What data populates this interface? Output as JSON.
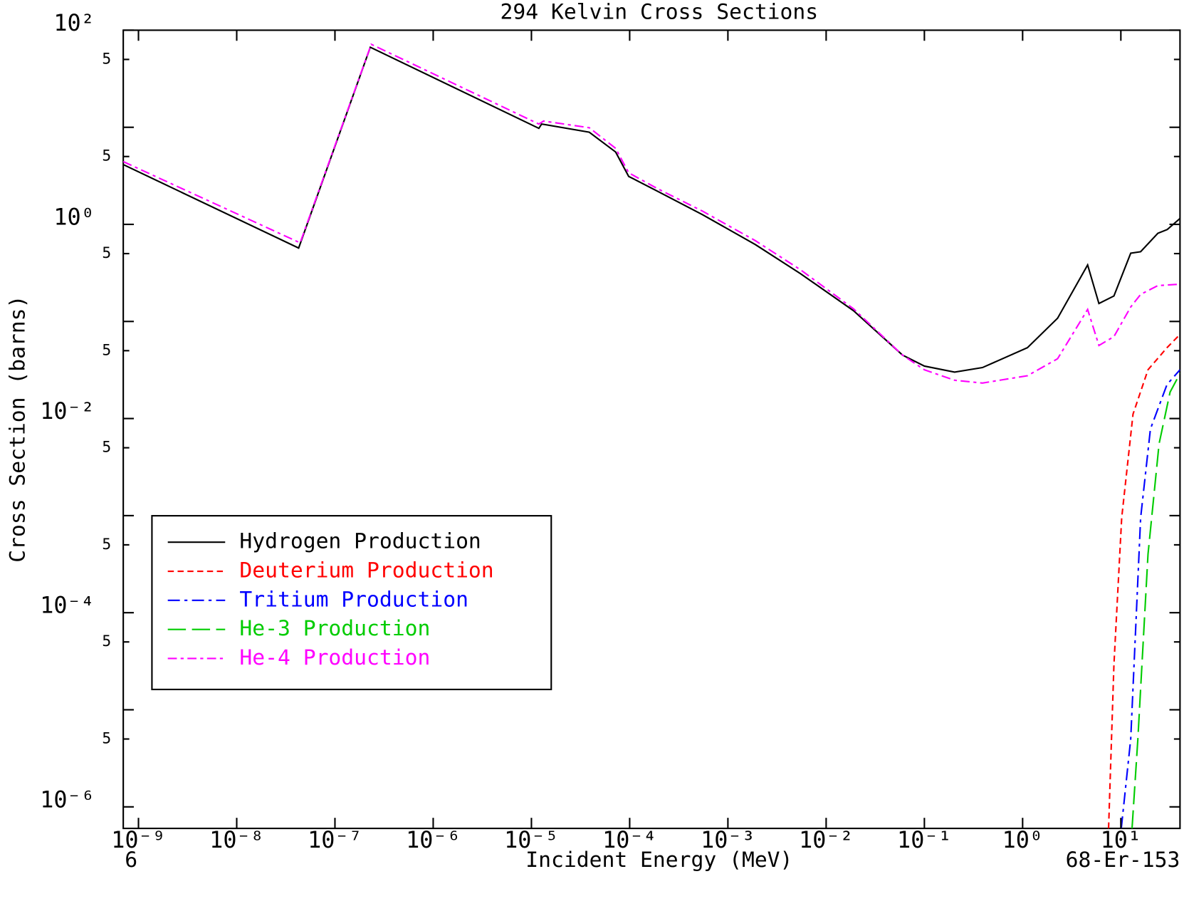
{
  "chart_data": {
    "type": "line",
    "title": "294 Kelvin Cross Sections",
    "xlabel": "Incident Energy (MeV)",
    "ylabel": "Cross Section (barns)",
    "annotations": [
      "6",
      "68-Er-153"
    ],
    "xscale": "log",
    "yscale": "log",
    "xlim": [
      7e-10,
      40
    ],
    "ylim": [
      6e-07,
      100
    ],
    "xticks": [
      {
        "value": 1e-09,
        "label": "10⁻⁹"
      },
      {
        "value": 1e-08,
        "label": "10⁻⁸"
      },
      {
        "value": 1e-07,
        "label": "10⁻⁷"
      },
      {
        "value": 1e-06,
        "label": "10⁻⁶"
      },
      {
        "value": 1e-05,
        "label": "10⁻⁵"
      },
      {
        "value": 0.0001,
        "label": "10⁻⁴"
      },
      {
        "value": 0.001,
        "label": "10⁻³"
      },
      {
        "value": 0.01,
        "label": "10⁻²"
      },
      {
        "value": 0.1,
        "label": "10⁻¹"
      },
      {
        "value": 1,
        "label": "10⁰"
      },
      {
        "value": 10,
        "label": "10¹"
      }
    ],
    "yticks": [
      {
        "value": 100,
        "label": "10²"
      },
      {
        "value": 50,
        "label": "5"
      },
      {
        "value": 5,
        "label": "5"
      },
      {
        "value": 1,
        "label": "10⁰"
      },
      {
        "value": 0.5,
        "label": "5"
      },
      {
        "value": 0.05,
        "label": "5"
      },
      {
        "value": 0.01,
        "label": "10⁻²"
      },
      {
        "value": 0.005,
        "label": "5"
      },
      {
        "value": 0.0005,
        "label": "5"
      },
      {
        "value": 0.0001,
        "label": "10⁻⁴"
      },
      {
        "value": 5e-05,
        "label": "5"
      },
      {
        "value": 5e-06,
        "label": "5"
      },
      {
        "value": 1e-06,
        "label": "10⁻⁶"
      }
    ],
    "yminor_ticks": [
      10,
      0.1,
      0.001,
      1e-05
    ],
    "legend": "center left",
    "series": [
      {
        "name": "Hydrogen Production",
        "color": "#000000",
        "line_style": "solid",
        "x": [
          7e-10,
          4.27e-08,
          2.29e-07,
          1.19e-05,
          1.27e-05,
          3.88e-05,
          7.2e-05,
          9.77e-05,
          0.000191,
          0.00055,
          0.0019,
          0.0055,
          0.019,
          0.06,
          0.1,
          0.203,
          0.39,
          1.12,
          2.27,
          4.59,
          5.98,
          8.5,
          12.6,
          15.9,
          23.8,
          29.7,
          40
        ],
        "values": [
          4.13,
          0.57,
          66.8,
          9.75,
          10.8,
          8.9,
          5.56,
          3.12,
          2.2,
          1.26,
          0.62,
          0.31,
          0.129,
          0.045,
          0.0347,
          0.0301,
          0.0335,
          0.0537,
          0.108,
          0.382,
          0.153,
          0.183,
          0.505,
          0.523,
          0.81,
          0.885,
          1.15
        ]
      },
      {
        "name": "Deuterium Production",
        "color": "#ff0000",
        "line_style": "dashed",
        "x": [
          7.5,
          8.5,
          10.2,
          13.3,
          18.9,
          29.5,
          40
        ],
        "values": [
          6e-07,
          2.9e-05,
          0.00095,
          0.0111,
          0.0318,
          0.0537,
          0.0736
        ]
      },
      {
        "name": "Tritium Production",
        "color": "#0000ff",
        "line_style": "dashdot",
        "x": [
          10.1,
          12.6,
          15.9,
          20,
          29.5,
          40
        ],
        "values": [
          6e-07,
          5e-06,
          0.00095,
          0.0078,
          0.0224,
          0.0318
        ]
      },
      {
        "name": "He-3 Production",
        "color": "#00cc00",
        "line_style": "longdash",
        "x": [
          13,
          14.9,
          18.9,
          24.5,
          31.7,
          40
        ],
        "values": [
          6e-07,
          5e-06,
          0.0004,
          0.0055,
          0.0187,
          0.0291
        ]
      },
      {
        "name": "He-4 Production",
        "color": "#ff00ff",
        "line_style": "dashdotlong",
        "x": [
          7e-10,
          4.42e-08,
          2.34e-07,
          1.19e-05,
          1.33e-05,
          3.88e-05,
          7.2e-05,
          9.77e-05,
          0.000191,
          0.00055,
          0.0019,
          0.0055,
          0.019,
          0.06,
          0.1,
          0.203,
          0.39,
          1.12,
          2.27,
          4.59,
          5.98,
          8.5,
          12.6,
          15.9,
          23.8,
          40
        ],
        "values": [
          4.43,
          0.645,
          71.6,
          10.8,
          11.6,
          9.9,
          6.07,
          3.4,
          2.34,
          1.37,
          0.68,
          0.34,
          0.135,
          0.045,
          0.0318,
          0.0248,
          0.0232,
          0.0276,
          0.0413,
          0.133,
          0.0566,
          0.0698,
          0.141,
          0.19,
          0.234,
          0.242
        ]
      }
    ]
  }
}
